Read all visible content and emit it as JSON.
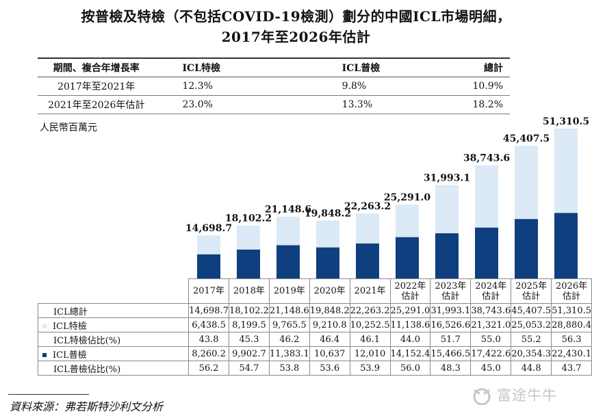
{
  "title": {
    "line1": "按普檢及特檢（不包括COVID-19檢測）劃分的中國ICL市場明細，",
    "line2": "2017年至2026年估計"
  },
  "cagr_table": {
    "headers": [
      "期間、複合年增長率",
      "ICL特檢",
      "ICL普檢",
      "總計"
    ],
    "rows": [
      [
        "2017年至2021年",
        "12.3%",
        "9.8%",
        "10.9%"
      ],
      [
        "2021年至2026年估計",
        "23.0%",
        "13.3%",
        "18.2%"
      ]
    ]
  },
  "unit": "人民幣百萬元",
  "chart_data": {
    "type": "bar",
    "stacked": true,
    "categories": [
      "2017年",
      "2018年",
      "2019年",
      "2020年",
      "2021年",
      "2022年估計",
      "2023年估計",
      "2024年估計",
      "2025年估計",
      "2026年估計"
    ],
    "category_lines": [
      [
        "2017年"
      ],
      [
        "2018年"
      ],
      [
        "2019年"
      ],
      [
        "2020年"
      ],
      [
        "2021年"
      ],
      [
        "2022年",
        "估計"
      ],
      [
        "2023年",
        "估計"
      ],
      [
        "2024年",
        "估計"
      ],
      [
        "2025年",
        "估計"
      ],
      [
        "2026年",
        "估計"
      ]
    ],
    "series": [
      {
        "name": "ICL普檢",
        "color": "#0f3f7e",
        "values": [
          8260.2,
          9902.7,
          11383.1,
          10637,
          12010,
          14152.4,
          15466.5,
          17422.6,
          20354.3,
          22430.1
        ]
      },
      {
        "name": "ICL特檢",
        "color": "#dce9f6",
        "values": [
          6438.5,
          8199.5,
          9765.5,
          9210.8,
          10252.5,
          11138.6,
          16526.6,
          21321.0,
          25053.2,
          28880.4
        ]
      }
    ],
    "totals": [
      14698.7,
      18102.2,
      21148.6,
      19848.2,
      22263.2,
      25291.0,
      31993.1,
      38743.6,
      45407.5,
      51310.5
    ],
    "total_labels": [
      "14,698.7",
      "18,102.2",
      "21,148.6",
      "19,848.2",
      "22,263.2",
      "25,291.0",
      "31,993.1",
      "38,743.6",
      "45,407.5",
      "51,310.5"
    ],
    "ylim": [
      0,
      52000
    ],
    "grid": false
  },
  "data_table": {
    "rows": [
      {
        "label": "ICL總計",
        "swatch": "",
        "values": [
          "14,698.7",
          "18,102.2",
          "21,148.6",
          "19,848.2",
          "22,263.2",
          "25,291.0",
          "31,993.1",
          "38,743.6",
          "45,407.5",
          "51,310.5"
        ]
      },
      {
        "label": "ICL特檢",
        "swatch": "light",
        "values": [
          "6,438.5",
          "8,199.5",
          "9,765.5",
          "9,210.8",
          "10,252.5",
          "11,138.6",
          "16,526.6",
          "21,321.0",
          "25,053.2",
          "28,880.4"
        ]
      },
      {
        "label": "ICL特檢佔比(%)",
        "swatch": "",
        "values": [
          "43.8",
          "45.3",
          "46.2",
          "46.4",
          "46.1",
          "44.0",
          "51.7",
          "55.0",
          "55.2",
          "56.3"
        ]
      },
      {
        "label": "ICL普檢",
        "swatch": "dark",
        "values": [
          "8,260.2",
          "9,902.7",
          "11,383.1",
          "10,637",
          "12,010",
          "14,152.4",
          "15,466.5",
          "17,422.6",
          "20,354.3",
          "22,430.1"
        ]
      },
      {
        "label": "ICL普檢佔比(%)",
        "swatch": "",
        "values": [
          "56.2",
          "54.7",
          "53.8",
          "53.6",
          "53.9",
          "56.0",
          "48.3",
          "45.0",
          "44.8",
          "43.7"
        ]
      }
    ]
  },
  "source": "資料來源：弗若斯特沙利文分析",
  "watermark": "富途牛牛"
}
